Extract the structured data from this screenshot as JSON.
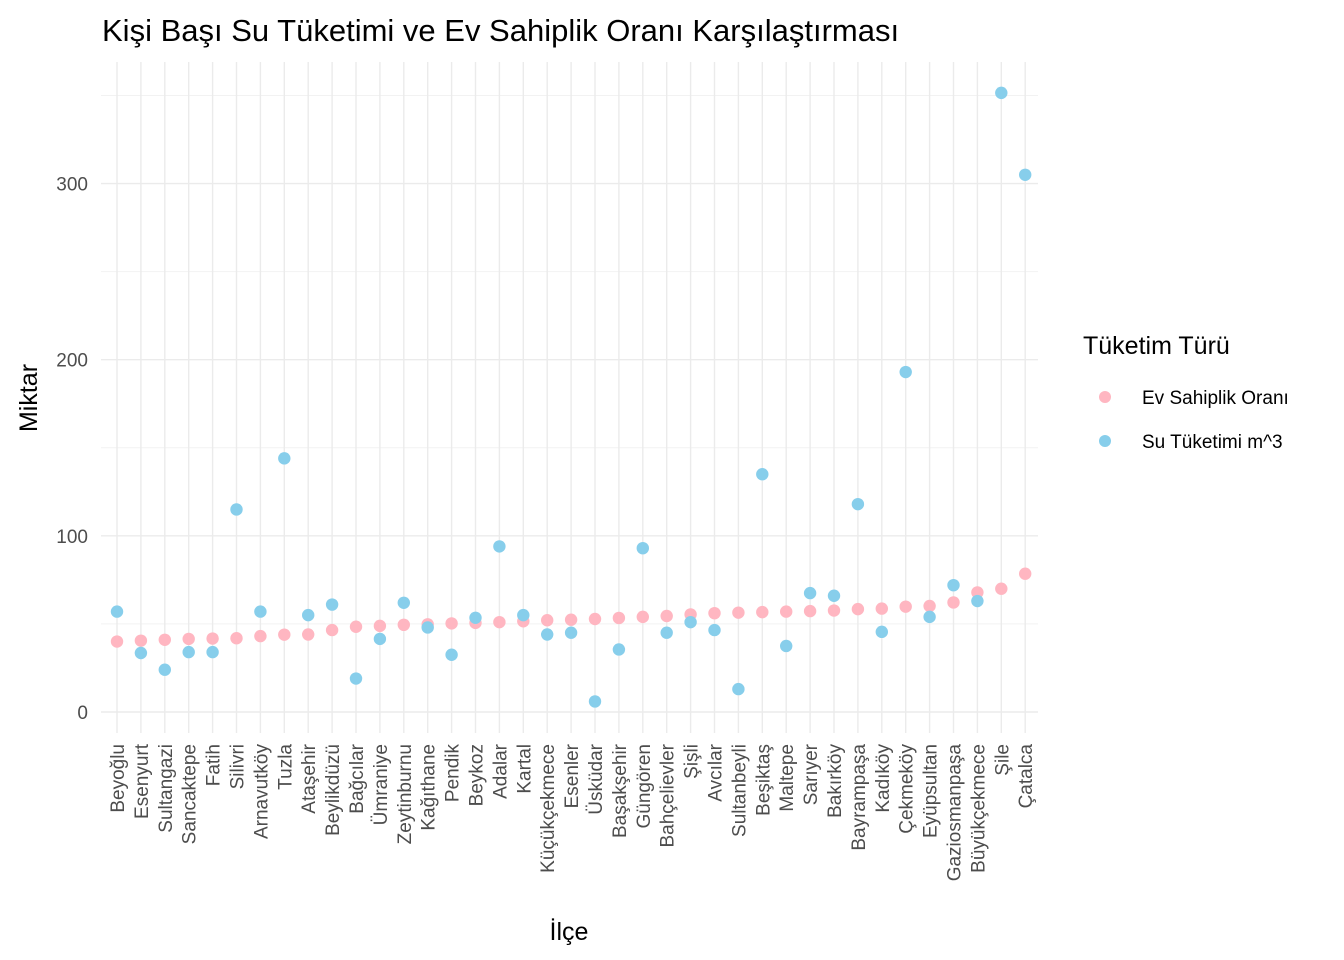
{
  "chart_data": {
    "type": "scatter",
    "title": "Kişi Başı Su Tüketimi ve Ev Sahiplik Oranı Karşılaştırması",
    "xlabel": "İlçe",
    "ylabel": "Miktar",
    "ylim": [
      -14,
      370
    ],
    "yticks": [
      0,
      100,
      200,
      300
    ],
    "grid": true,
    "legend_position": "right",
    "legend_title": "Tüketim Türü",
    "categories": [
      "Beyoğlu",
      "Esenyurt",
      "Sultangazi",
      "Sancaktepe",
      "Fatih",
      "Silivri",
      "Arnavutköy",
      "Tuzla",
      "Ataşehir",
      "Beylikdüzü",
      "Bağcılar",
      "Ümraniye",
      "Zeytinburnu",
      "Kağıthane",
      "Pendik",
      "Beykoz",
      "Adalar",
      "Kartal",
      "Küçükçekmece",
      "Esenler",
      "Üsküdar",
      "Başakşehir",
      "Güngören",
      "Bahçelievler",
      "Şişli",
      "Avcılar",
      "Sultanbeyli",
      "Beşiktaş",
      "Maltepe",
      "Sarıyer",
      "Bakırköy",
      "Bayrampaşa",
      "Kadıköy",
      "Çekmeköy",
      "Eyüpsultan",
      "Gaziosmanpaşa",
      "Büyükçekmece",
      "Şile",
      "Çatalca"
    ],
    "series": [
      {
        "name": "Ev Sahiplik Oranı",
        "color": "#FFB6C1",
        "values": [
          40,
          40.5,
          41,
          41.5,
          41.7,
          41.9,
          43.1,
          43.9,
          44,
          46.5,
          48.4,
          48.9,
          49.5,
          49.8,
          50.3,
          50.6,
          51,
          51.5,
          52.1,
          52.4,
          52.8,
          53.4,
          54,
          54.5,
          55.4,
          56.1,
          56.4,
          56.7,
          57,
          57.3,
          57.6,
          58.4,
          58.7,
          59.8,
          60.2,
          62.2,
          67.9,
          70,
          78.5
        ]
      },
      {
        "name": "Su Tüketimi m^3",
        "color": "#87CEEB",
        "values": [
          57,
          33.5,
          24,
          34,
          34,
          115,
          57,
          144,
          55,
          61,
          19,
          41.5,
          62,
          48,
          32.5,
          53.5,
          94,
          55,
          44,
          45,
          6,
          35.5,
          93,
          45,
          51,
          46.5,
          13,
          135,
          37.5,
          67.5,
          66,
          118,
          45.5,
          193,
          54,
          72,
          63,
          351.5,
          305
        ]
      }
    ]
  }
}
